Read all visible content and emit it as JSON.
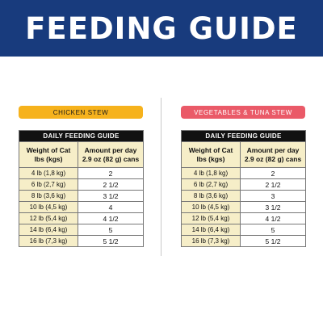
{
  "header": {
    "title": "FEEDING GUIDE",
    "bg_color": "#183b7d"
  },
  "panels": [
    {
      "banner": "CHICKEN STEW",
      "banner_color": "#f6b21c",
      "table_title": "DAILY FEEDING GUIDE",
      "col1_header_line1": "Weight of Cat",
      "col1_header_line2": "lbs (kgs)",
      "col2_header_line1": "Amount per day",
      "col2_header_line2": "2.9 oz (82 g) cans",
      "rows": [
        {
          "weight": "4 lb (1,8 kg)",
          "amount": "2"
        },
        {
          "weight": "6 lb (2,7 kg)",
          "amount": "2 1/2"
        },
        {
          "weight": "8 lb (3,6 kg)",
          "amount": "3 1/2"
        },
        {
          "weight": "10 lb (4,5 kg)",
          "amount": "4"
        },
        {
          "weight": "12 lb (5,4 kg)",
          "amount": "4 1/2"
        },
        {
          "weight": "14 lb (6,4 kg)",
          "amount": "5"
        },
        {
          "weight": "16 lb (7,3 kg)",
          "amount": "5 1/2"
        }
      ]
    },
    {
      "banner": "VEGETABLES & TUNA STEW",
      "banner_color": "#ea5a68",
      "table_title": "DAILY FEEDING GUIDE",
      "col1_header_line1": "Weight of Cat",
      "col1_header_line2": "lbs (kgs)",
      "col2_header_line1": "Amount per day",
      "col2_header_line2": "2.9 oz (82 g) cans",
      "rows": [
        {
          "weight": "4 lb (1,8 kg)",
          "amount": "2"
        },
        {
          "weight": "6 lb (2,7 kg)",
          "amount": "2 1/2"
        },
        {
          "weight": "8 lb (3,6 kg)",
          "amount": "3"
        },
        {
          "weight": "10 lb (4,5 kg)",
          "amount": "3 1/2"
        },
        {
          "weight": "12 lb (5,4 kg)",
          "amount": "4 1/2"
        },
        {
          "weight": "14 lb (6,4 kg)",
          "amount": "5"
        },
        {
          "weight": "16 lb (7,3 kg)",
          "amount": "5 1/2"
        }
      ]
    }
  ]
}
